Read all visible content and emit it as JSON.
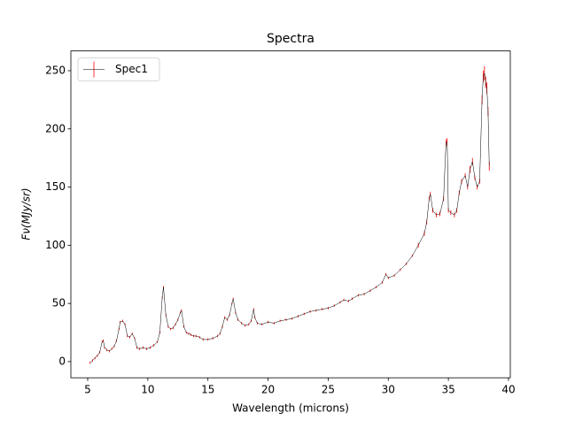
{
  "chart_data": {
    "type": "errorbar_line",
    "title": "Spectra",
    "xlabel": "Wavelength (microns)",
    "ylabel": "Fν(MJy/sr)",
    "legend": "upper left",
    "series": [
      {
        "name": "Spec1",
        "color": "#000000",
        "error_color": "#ff0000",
        "x": [
          5.2,
          5.4,
          5.6,
          5.8,
          6.0,
          6.2,
          6.3,
          6.4,
          6.6,
          6.8,
          7.0,
          7.2,
          7.4,
          7.6,
          7.7,
          7.9,
          8.1,
          8.3,
          8.5,
          8.7,
          8.9,
          9.1,
          9.3,
          9.6,
          9.9,
          10.2,
          10.5,
          10.8,
          11.0,
          11.2,
          11.3,
          11.5,
          11.7,
          11.9,
          12.1,
          12.3,
          12.5,
          12.7,
          12.8,
          13.0,
          13.2,
          13.4,
          13.6,
          13.8,
          14.0,
          14.3,
          14.6,
          15.0,
          15.4,
          15.8,
          16.0,
          16.2,
          16.4,
          16.6,
          16.8,
          17.0,
          17.1,
          17.3,
          17.5,
          17.8,
          18.1,
          18.4,
          18.6,
          18.8,
          18.9,
          19.1,
          19.5,
          20.0,
          20.5,
          21.0,
          21.5,
          22.0,
          22.5,
          23.0,
          23.5,
          24.0,
          24.5,
          25.0,
          25.5,
          26.0,
          26.3,
          26.7,
          27.0,
          27.5,
          28.0,
          28.5,
          29.0,
          29.5,
          29.8,
          30.0,
          30.5,
          31.0,
          31.5,
          32.0,
          32.5,
          33.0,
          33.2,
          33.4,
          33.5,
          33.7,
          34.0,
          34.3,
          34.6,
          34.8,
          34.9,
          35.0,
          35.2,
          35.5,
          35.7,
          35.9,
          36.1,
          36.4,
          36.6,
          36.8,
          37.0,
          37.2,
          37.4,
          37.6,
          37.8,
          37.9,
          38.0,
          38.1,
          38.2,
          38.3,
          38.4
        ],
        "values": [
          -1,
          1,
          3,
          5,
          8,
          17,
          18,
          12,
          10,
          9,
          11,
          13,
          18,
          28,
          34,
          35,
          32,
          22,
          21,
          24,
          20,
          12,
          11,
          12,
          11,
          12,
          14,
          17,
          25,
          55,
          64,
          40,
          30,
          28,
          29,
          32,
          36,
          42,
          44,
          30,
          25,
          24,
          23,
          22,
          22,
          21,
          19,
          19,
          20,
          22,
          24,
          30,
          38,
          36,
          40,
          50,
          54,
          42,
          36,
          33,
          31,
          32,
          35,
          45,
          38,
          33,
          32,
          34,
          33,
          35,
          36,
          37,
          39,
          41,
          43,
          44,
          45,
          46,
          48,
          51,
          53,
          52,
          54,
          57,
          58,
          61,
          64,
          68,
          75,
          72,
          74,
          79,
          84,
          91,
          100,
          110,
          120,
          140,
          144,
          130,
          126,
          127,
          140,
          188,
          189,
          130,
          128,
          126,
          130,
          145,
          155,
          160,
          150,
          165,
          172,
          158,
          150,
          155,
          225,
          245,
          248,
          240,
          235,
          215,
          168
        ],
        "errors": [
          1,
          1,
          1,
          1,
          1,
          1,
          1,
          1,
          1,
          1,
          1,
          1,
          1,
          1,
          1,
          1,
          1,
          1,
          1,
          1,
          1,
          1,
          1,
          1,
          1,
          1,
          1,
          1,
          1,
          1,
          1,
          1,
          1,
          1,
          1,
          1,
          1,
          1,
          1,
          1,
          1,
          1,
          1,
          1,
          1,
          1,
          1,
          1,
          1,
          1,
          1,
          1,
          1,
          1,
          1,
          1,
          1,
          1,
          1,
          1,
          1,
          1,
          1,
          1,
          1,
          1,
          1,
          1,
          1,
          1,
          1,
          1,
          1,
          1,
          1,
          1,
          1,
          1,
          1,
          1,
          1,
          1,
          1,
          1,
          1,
          1,
          1,
          1,
          1,
          1,
          1,
          1,
          1,
          1,
          2,
          2,
          2,
          2,
          2,
          2,
          2,
          2,
          2,
          3,
          3,
          2,
          2,
          2,
          2,
          2,
          2,
          2,
          2,
          3,
          3,
          2,
          2,
          2,
          4,
          5,
          6,
          5,
          5,
          4,
          4
        ]
      }
    ],
    "xlim": [
      3.6,
      40.15
    ],
    "ylim": [
      -13.9,
      267
    ],
    "xticks": [
      5,
      10,
      15,
      20,
      25,
      30,
      35,
      40
    ],
    "yticks": [
      0,
      50,
      100,
      150,
      200,
      250
    ]
  }
}
